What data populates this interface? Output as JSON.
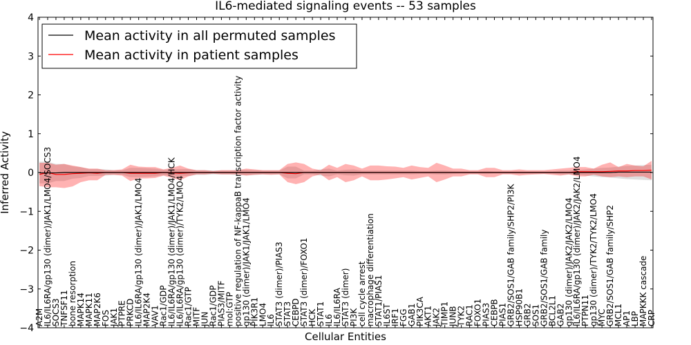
{
  "chart_data": {
    "type": "line",
    "title": "IL6-mediated signaling events -- 53 samples",
    "xlabel": "Cellular Entities",
    "ylabel": "Inferred Activity",
    "ylim": [
      -4,
      4
    ],
    "yticks": [
      -4,
      -3,
      -2,
      -1,
      0,
      1,
      2,
      3,
      4
    ],
    "legend_position": "top-left",
    "categories": [
      "A2M",
      "IL6/IL6RA/gp130 (dimer)/JAK1/LMO4/SOCS3",
      "SOCS3",
      "TNFSF11",
      "bone resorption",
      "MAPK14",
      "MAPK11",
      "MAP2K6",
      "FOS",
      "JAK1",
      "PTPRE",
      "PRKCD",
      "IL6/IL6RA/gp130 (dimer)/JAK1/LMO4",
      "MAP2K4",
      "VAV1",
      "Rac1/GDP",
      "IL6/IL6RA/gp130 (dimer)/JAK1/LMO4/HCK",
      "IL6/IL6RA/gp130 (dimer)/TYK2/LMO4",
      "Rac1/GTP",
      "MITF",
      "JUN",
      "Rac1/GDP",
      "PIAS3/MITF",
      "mol:GTP",
      "positive regulation of NF-kappaB transcription factor activity",
      "gp130 (dimer)/JAK1/JAK1/LMO4",
      "PIK3R1",
      "LMO4",
      "IL6",
      "STAT3 (dimer)/PIAS3",
      "STAT3",
      "CEBPD",
      "STAT3 (dimer)/FOXO1",
      "HCK",
      "STAT1",
      "IL6",
      "IL6/IL6RA",
      "STAT3 (dimer)",
      "PI3K",
      "cell cycle arrest",
      "macrophage differentiation",
      "STAT1/PIAS1",
      "IL6ST",
      "IRF1",
      "FGG",
      "GAB1",
      "PIK3CA",
      "AKT1",
      "JAK2",
      "TIMP1",
      "JUNB",
      "TYK2",
      "RAC1",
      "FOXO1",
      "PIAS3",
      "CEBPB",
      "PIAS1",
      "GRB2/SOS1/GAB family/SHP2/PI3K",
      "HSP90B1",
      "GRB2",
      "SOS1",
      "GRB2/SOS1/GAB family",
      "BCL2L1",
      "GAB2",
      "gp130 (dimer)/JAK2/JAK2/LMO4",
      "IL6/IL6RA/gp130 (dimer)/JAK2/JAK2/LMO4",
      "PTPN11",
      "gp130 (dimer)/TYK2/TYK2/LMO4",
      "MYC",
      "GRB2/SOS1/GAB family/SHP2",
      "MCL1",
      "AP1",
      "LBP",
      "MAPKKK cascade",
      "CRP"
    ],
    "series": [
      {
        "name": "Mean activity in all permuted samples",
        "color": "#000000",
        "values": [
          -0.01,
          -0.01,
          -0.01,
          0.0,
          0.0,
          0.0,
          0.0,
          0.0,
          0.0,
          0.0,
          0.0,
          0.0,
          0.0,
          0.0,
          0.0,
          0.0,
          0.0,
          0.0,
          0.0,
          0.0,
          0.0,
          0.0,
          0.0,
          0.0,
          0.0,
          0.0,
          0.0,
          0.0,
          0.0,
          0.0,
          0.0,
          0.0,
          0.0,
          0.0,
          0.0,
          0.0,
          0.0,
          0.0,
          0.0,
          0.0,
          0.0,
          0.0,
          0.0,
          0.0,
          0.0,
          0.0,
          0.0,
          0.0,
          0.0,
          0.0,
          0.0,
          0.0,
          0.0,
          0.0,
          0.0,
          0.0,
          0.0,
          0.0,
          0.0,
          0.0,
          0.0,
          0.0,
          0.0,
          0.0,
          0.0,
          0.0,
          0.0,
          0.0,
          0.0,
          0.0,
          0.01,
          0.01,
          0.01,
          0.01,
          0.01
        ],
        "band_low": [
          -0.28,
          -0.28,
          -0.22,
          -0.22,
          -0.16,
          -0.14,
          -0.09,
          -0.09,
          -0.08,
          -0.06,
          -0.06,
          -0.12,
          -0.12,
          -0.11,
          -0.1,
          -0.07,
          -0.08,
          -0.09,
          -0.09,
          -0.06,
          -0.06,
          -0.05,
          -0.05,
          -0.05,
          -0.07,
          -0.07,
          -0.06,
          -0.05,
          -0.05,
          -0.05,
          -0.15,
          -0.15,
          -0.05,
          -0.05,
          -0.08,
          -0.1,
          -0.05,
          -0.07,
          -0.08,
          -0.05,
          -0.05,
          -0.05,
          -0.05,
          -0.05,
          -0.05,
          -0.05,
          -0.04,
          -0.04,
          -0.05,
          -0.05,
          -0.04,
          -0.03,
          -0.03,
          -0.03,
          -0.04,
          -0.03,
          -0.03,
          -0.03,
          -0.03,
          -0.03,
          -0.03,
          -0.03,
          -0.03,
          -0.05,
          -0.05,
          -0.06,
          -0.08,
          -0.1,
          -0.12,
          -0.13,
          -0.15,
          -0.17,
          -0.18,
          -0.19,
          -0.2
        ],
        "band_high": [
          0.28,
          0.28,
          0.22,
          0.22,
          0.16,
          0.14,
          0.09,
          0.09,
          0.08,
          0.06,
          0.06,
          0.12,
          0.12,
          0.11,
          0.1,
          0.07,
          0.08,
          0.09,
          0.09,
          0.06,
          0.06,
          0.05,
          0.05,
          0.05,
          0.07,
          0.07,
          0.06,
          0.05,
          0.05,
          0.05,
          0.15,
          0.15,
          0.05,
          0.05,
          0.08,
          0.1,
          0.05,
          0.07,
          0.08,
          0.05,
          0.05,
          0.05,
          0.05,
          0.05,
          0.05,
          0.05,
          0.04,
          0.04,
          0.05,
          0.05,
          0.04,
          0.03,
          0.03,
          0.03,
          0.04,
          0.03,
          0.03,
          0.03,
          0.03,
          0.03,
          0.03,
          0.03,
          0.03,
          0.05,
          0.05,
          0.06,
          0.08,
          0.1,
          0.12,
          0.13,
          0.15,
          0.17,
          0.18,
          0.19,
          0.2
        ]
      },
      {
        "name": "Mean activity in patient samples",
        "color": "#ff0000",
        "values": [
          -0.05,
          0.0,
          -0.05,
          -0.05,
          -0.03,
          -0.02,
          -0.01,
          -0.02,
          0.0,
          0.0,
          0.0,
          -0.02,
          -0.02,
          -0.02,
          -0.02,
          0.0,
          -0.01,
          -0.02,
          -0.01,
          0.0,
          0.0,
          0.0,
          0.0,
          0.0,
          0.0,
          0.0,
          0.0,
          0.0,
          0.0,
          0.0,
          -0.02,
          -0.03,
          0.0,
          0.0,
          0.0,
          0.0,
          0.0,
          0.0,
          0.0,
          0.0,
          0.0,
          0.0,
          0.0,
          0.0,
          0.0,
          0.0,
          0.0,
          0.0,
          0.0,
          0.0,
          0.0,
          0.0,
          0.0,
          0.0,
          0.0,
          0.0,
          0.0,
          0.0,
          0.0,
          0.0,
          0.0,
          0.0,
          0.0,
          0.0,
          0.0,
          0.02,
          0.02,
          0.02,
          0.02,
          0.03,
          0.04,
          0.04,
          0.05,
          0.05,
          0.06
        ],
        "band_low": [
          -0.35,
          -0.38,
          -0.38,
          -0.4,
          -0.36,
          -0.25,
          -0.2,
          -0.2,
          -0.06,
          -0.06,
          -0.08,
          -0.22,
          -0.15,
          -0.15,
          -0.14,
          -0.08,
          -0.14,
          -0.2,
          -0.1,
          -0.05,
          -0.05,
          -0.03,
          -0.05,
          -0.05,
          -0.05,
          -0.08,
          -0.06,
          -0.05,
          -0.06,
          -0.05,
          -0.25,
          -0.3,
          -0.25,
          -0.1,
          -0.05,
          -0.2,
          -0.12,
          -0.25,
          -0.2,
          -0.1,
          -0.2,
          -0.2,
          -0.18,
          -0.15,
          -0.12,
          -0.18,
          -0.14,
          -0.1,
          -0.25,
          -0.18,
          -0.1,
          -0.1,
          -0.05,
          -0.05,
          -0.12,
          -0.12,
          -0.05,
          -0.05,
          -0.08,
          -0.06,
          -0.05,
          -0.04,
          -0.06,
          -0.08,
          -0.05,
          -0.1,
          -0.1,
          -0.06,
          -0.1,
          -0.12,
          -0.1,
          -0.12,
          -0.1,
          -0.1,
          -0.18
        ],
        "band_high": [
          0.25,
          0.25,
          0.2,
          0.22,
          0.18,
          0.14,
          0.1,
          0.1,
          0.06,
          0.06,
          0.08,
          0.2,
          0.15,
          0.14,
          0.14,
          0.08,
          0.12,
          0.18,
          0.1,
          0.06,
          0.06,
          0.04,
          0.06,
          0.06,
          0.06,
          0.1,
          0.08,
          0.06,
          0.06,
          0.06,
          0.22,
          0.26,
          0.22,
          0.1,
          0.06,
          0.2,
          0.12,
          0.22,
          0.18,
          0.1,
          0.18,
          0.18,
          0.16,
          0.15,
          0.12,
          0.18,
          0.14,
          0.12,
          0.25,
          0.18,
          0.1,
          0.1,
          0.06,
          0.06,
          0.12,
          0.12,
          0.06,
          0.06,
          0.08,
          0.06,
          0.06,
          0.06,
          0.08,
          0.1,
          0.12,
          0.14,
          0.14,
          0.1,
          0.2,
          0.26,
          0.14,
          0.22,
          0.18,
          0.16,
          0.3
        ]
      }
    ]
  }
}
